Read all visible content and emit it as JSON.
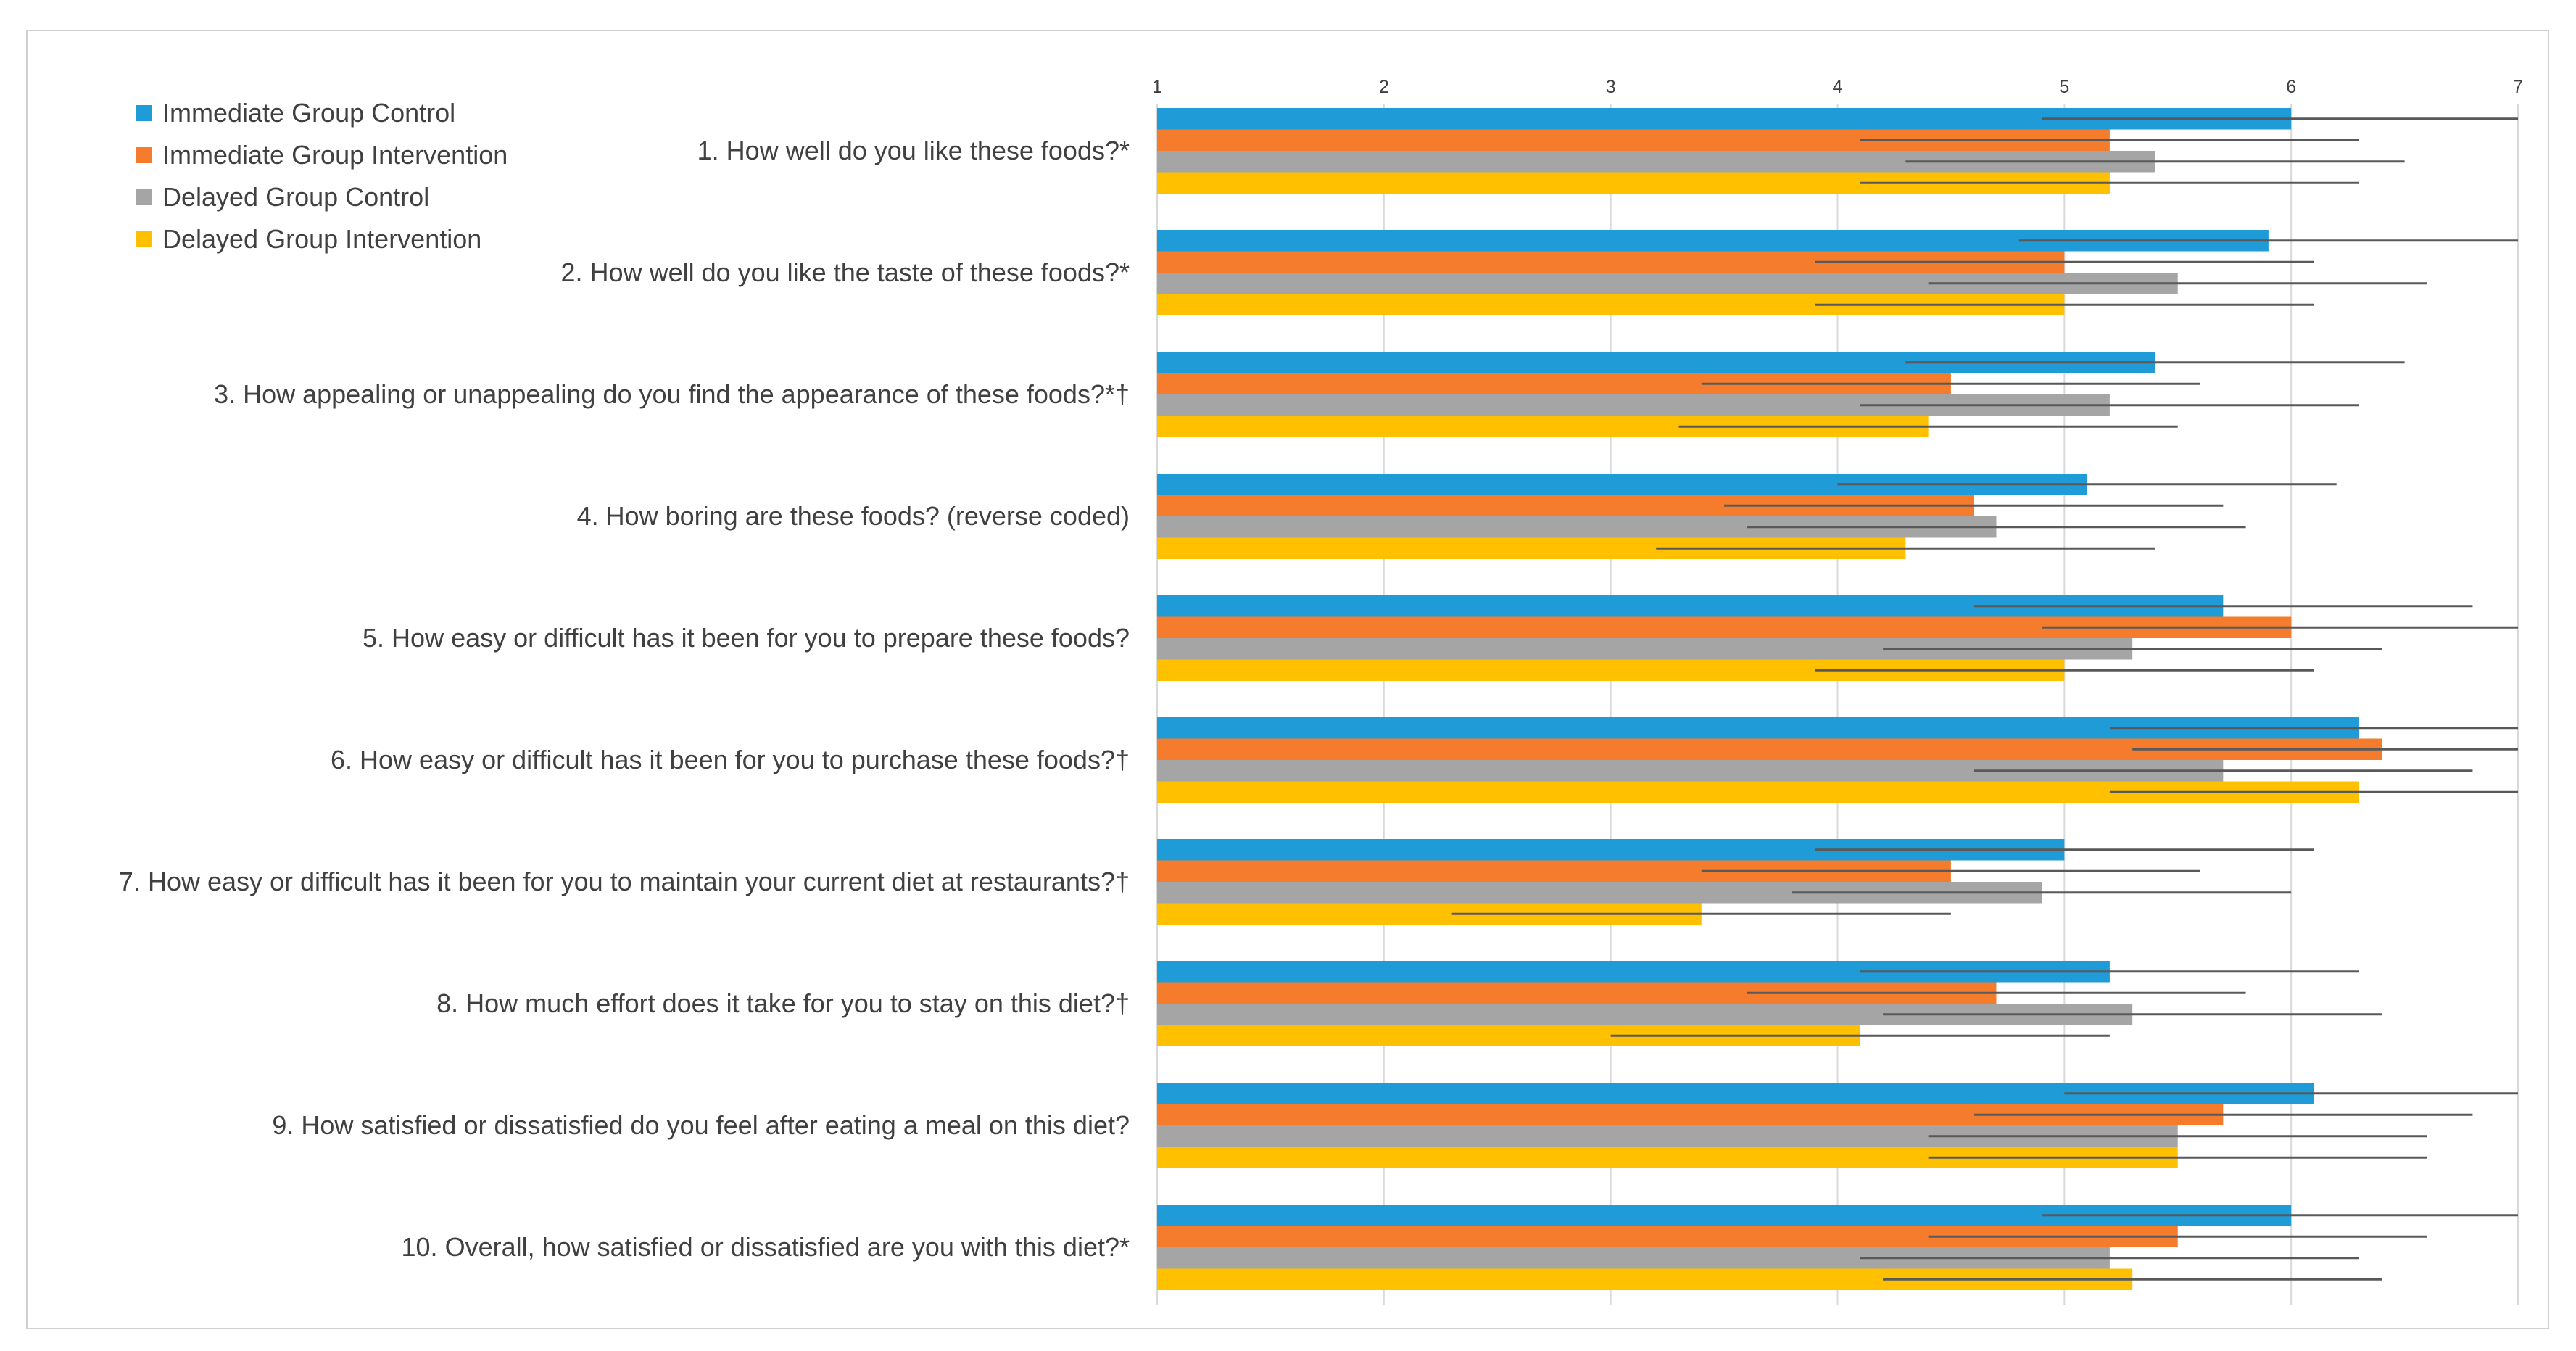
{
  "chart_data": {
    "type": "bar",
    "orientation": "horizontal",
    "title": "",
    "xlabel": "",
    "ylabel": "",
    "xlim": [
      1,
      7
    ],
    "xticks": [
      "1",
      "2",
      "3",
      "4",
      "5",
      "6",
      "7"
    ],
    "grid": "vertical",
    "legend_position": "top-left",
    "categories": [
      "1.   How well do you like these foods?*",
      "2.   How well do you like the taste of these foods?*",
      "3.   How appealing or unappealing do you find the appearance of these foods?*†",
      "4.   How boring are these foods? (reverse coded)",
      "5.   How easy or difficult has it been for you to prepare these foods?",
      "6.   How easy or difficult has it been for you to purchase these foods?†",
      "7.   How easy or difficult has it been for you to maintain your current diet at restaurants?†",
      "8.   How much effort does it take for you to stay on this diet?†",
      "9.   How satisfied or dissatisfied do you feel after eating a meal on this diet?",
      "10.  Overall, how satisfied or dissatisfied are you with this diet?*"
    ],
    "series": [
      {
        "name": "Immediate Group Control",
        "color": "#1f9bd7",
        "values": [
          6.0,
          5.9,
          5.4,
          5.1,
          5.7,
          6.3,
          5.0,
          5.2,
          6.1,
          6.0
        ],
        "error": [
          1.1,
          1.1,
          1.1,
          1.1,
          1.1,
          1.1,
          1.1,
          1.1,
          1.1,
          1.1
        ]
      },
      {
        "name": "Immediate Group Intervention",
        "color": "#f47c2c",
        "values": [
          5.2,
          5.0,
          4.5,
          4.6,
          6.0,
          6.4,
          4.5,
          4.7,
          5.7,
          5.5
        ],
        "error": [
          1.1,
          1.1,
          1.1,
          1.1,
          1.1,
          1.1,
          1.1,
          1.1,
          1.1,
          1.1
        ]
      },
      {
        "name": "Delayed Group Control",
        "color": "#a5a5a5",
        "values": [
          5.4,
          5.5,
          5.2,
          4.7,
          5.3,
          5.7,
          4.9,
          5.3,
          5.5,
          5.2
        ],
        "error": [
          1.1,
          1.1,
          1.1,
          1.1,
          1.1,
          1.1,
          1.1,
          1.1,
          1.1,
          1.1
        ]
      },
      {
        "name": "Delayed Group Intervention",
        "color": "#ffc000",
        "values": [
          5.2,
          5.0,
          4.4,
          4.3,
          5.0,
          6.3,
          3.4,
          4.1,
          5.5,
          5.3
        ],
        "error": [
          1.1,
          1.1,
          1.1,
          1.1,
          1.1,
          1.1,
          1.1,
          1.1,
          1.1,
          1.1
        ]
      }
    ]
  }
}
